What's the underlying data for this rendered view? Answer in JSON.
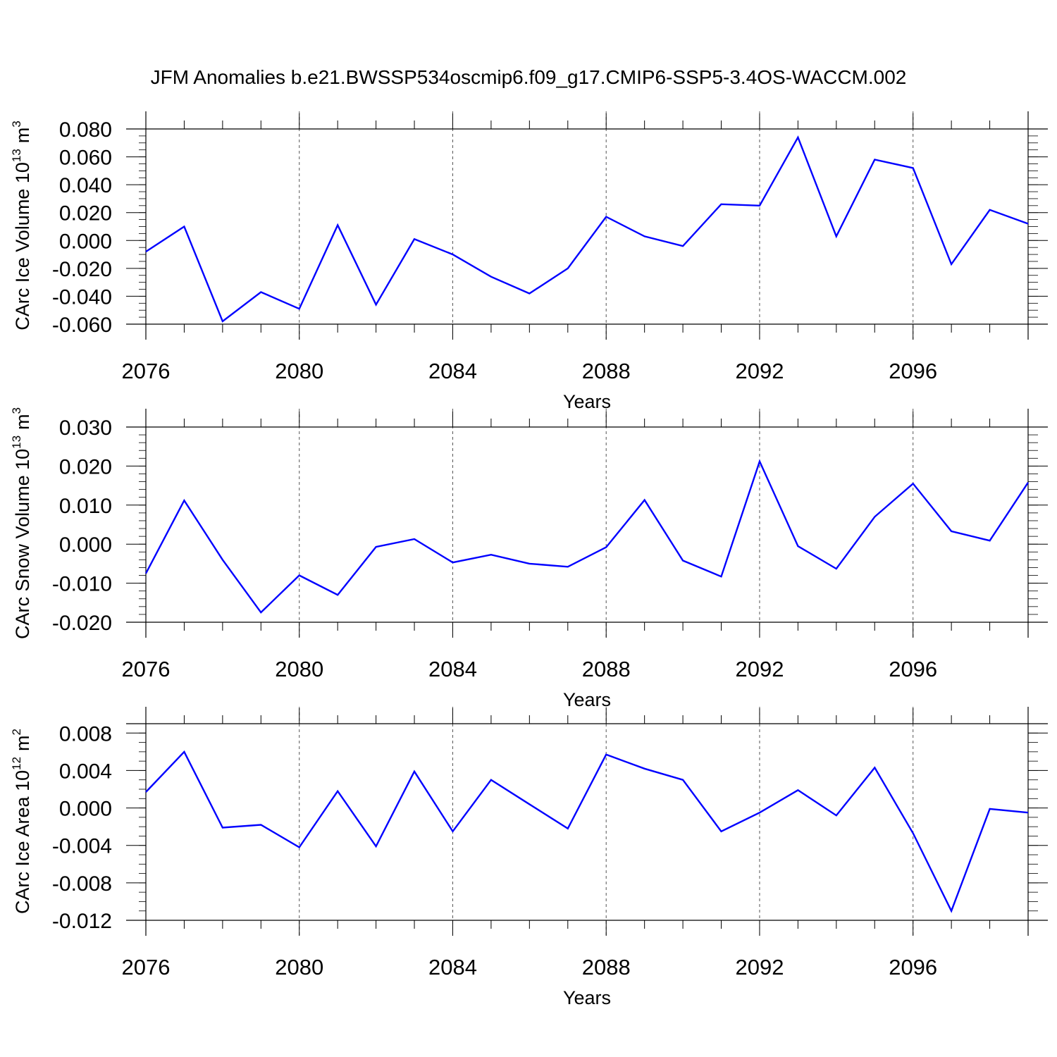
{
  "figure": {
    "title": "JFM Anomalies b.e21.BWSSP534oscmip6.f09_g17.CMIP6-SSP5-3.4OS-WACCM.002",
    "line_color": "#0000ff",
    "grid_color": "#555555"
  },
  "chart_data": [
    {
      "type": "line",
      "title": "",
      "ylabel_main": "CArc Ice Volume 10",
      "ylabel_exp": "13",
      "ylabel_unit": "m",
      "ylabel_unit_exp": "3",
      "xlabel": "Years",
      "x": [
        2076,
        2077,
        2078,
        2079,
        2080,
        2081,
        2082,
        2083,
        2084,
        2085,
        2086,
        2087,
        2088,
        2089,
        2090,
        2091,
        2092,
        2093,
        2094,
        2095,
        2096,
        2097,
        2098,
        2099
      ],
      "series": [
        {
          "name": "CArc Ice Volume",
          "values": [
            -0.008,
            0.01,
            -0.058,
            -0.037,
            -0.049,
            0.011,
            -0.046,
            0.001,
            -0.01,
            -0.026,
            -0.038,
            -0.02,
            0.017,
            0.003,
            -0.004,
            0.026,
            0.025,
            0.074,
            0.003,
            0.058,
            0.052,
            -0.017,
            0.022,
            0.012
          ]
        }
      ],
      "xlim": [
        2076,
        2099
      ],
      "ylim": [
        -0.06,
        0.08
      ],
      "yticks": [
        -0.06,
        -0.04,
        -0.02,
        0.0,
        0.02,
        0.04,
        0.06,
        0.08
      ],
      "ytick_labels": [
        "-0.060",
        "-0.040",
        "-0.020",
        "0.000",
        "0.020",
        "0.040",
        "0.060",
        "0.080"
      ],
      "yminor_step": 0.005,
      "xticks": [
        2076,
        2080,
        2084,
        2088,
        2092,
        2096
      ],
      "xtick_labels": [
        "2076",
        "2080",
        "2084",
        "2088",
        "2092",
        "2096"
      ],
      "grid_x": [
        2080,
        2084,
        2088,
        2092,
        2096
      ]
    },
    {
      "type": "line",
      "title": "",
      "ylabel_main": "CArc Snow Volume 10",
      "ylabel_exp": "13",
      "ylabel_unit": "m",
      "ylabel_unit_exp": "3",
      "xlabel": "Years",
      "x": [
        2076,
        2077,
        2078,
        2079,
        2080,
        2081,
        2082,
        2083,
        2084,
        2085,
        2086,
        2087,
        2088,
        2089,
        2090,
        2091,
        2092,
        2093,
        2094,
        2095,
        2096,
        2097,
        2098,
        2099
      ],
      "series": [
        {
          "name": "CArc Snow Volume",
          "values": [
            -0.0075,
            0.0112,
            -0.004,
            -0.0175,
            -0.008,
            -0.013,
            -0.0007,
            0.0013,
            -0.0047,
            -0.0027,
            -0.005,
            -0.0058,
            -0.0008,
            0.0113,
            -0.0042,
            -0.0083,
            0.0212,
            -0.0005,
            -0.0063,
            0.007,
            0.0155,
            0.0033,
            0.0009,
            0.0158
          ]
        }
      ],
      "xlim": [
        2076,
        2099
      ],
      "ylim": [
        -0.02,
        0.03
      ],
      "yticks": [
        -0.02,
        -0.01,
        0.0,
        0.01,
        0.02,
        0.03
      ],
      "ytick_labels": [
        "-0.020",
        "-0.010",
        "0.000",
        "0.010",
        "0.020",
        "0.030"
      ],
      "yminor_step": 0.002,
      "xticks": [
        2076,
        2080,
        2084,
        2088,
        2092,
        2096
      ],
      "xtick_labels": [
        "2076",
        "2080",
        "2084",
        "2088",
        "2092",
        "2096"
      ],
      "grid_x": [
        2080,
        2084,
        2088,
        2092,
        2096
      ]
    },
    {
      "type": "line",
      "title": "",
      "ylabel_main": "CArc Ice Area 10",
      "ylabel_exp": "12",
      "ylabel_unit": "m",
      "ylabel_unit_exp": "2",
      "xlabel": "Years",
      "x": [
        2076,
        2077,
        2078,
        2079,
        2080,
        2081,
        2082,
        2083,
        2084,
        2085,
        2086,
        2087,
        2088,
        2089,
        2090,
        2091,
        2092,
        2093,
        2094,
        2095,
        2096,
        2097,
        2098,
        2099
      ],
      "series": [
        {
          "name": "CArc Ice Area",
          "values": [
            0.0017,
            0.006,
            -0.0021,
            -0.0018,
            -0.0042,
            0.0018,
            -0.0041,
            0.0039,
            -0.0025,
            0.003,
            0.0004,
            -0.0022,
            0.0057,
            0.0042,
            0.003,
            -0.0025,
            -0.0005,
            0.0019,
            -0.0008,
            0.0043,
            -0.0027,
            -0.011,
            -0.0001,
            -0.0005
          ]
        }
      ],
      "xlim": [
        2076,
        2099
      ],
      "ylim": [
        -0.012,
        0.009
      ],
      "yticks": [
        -0.012,
        -0.008,
        -0.004,
        0.0,
        0.004,
        0.008
      ],
      "ytick_labels": [
        "-0.012",
        "-0.008",
        "-0.004",
        "0.000",
        "0.004",
        "0.008"
      ],
      "yminor_step": 0.001,
      "xticks": [
        2076,
        2080,
        2084,
        2088,
        2092,
        2096
      ],
      "xtick_labels": [
        "2076",
        "2080",
        "2084",
        "2088",
        "2092",
        "2096"
      ],
      "grid_x": [
        2080,
        2084,
        2088,
        2092,
        2096
      ]
    }
  ]
}
